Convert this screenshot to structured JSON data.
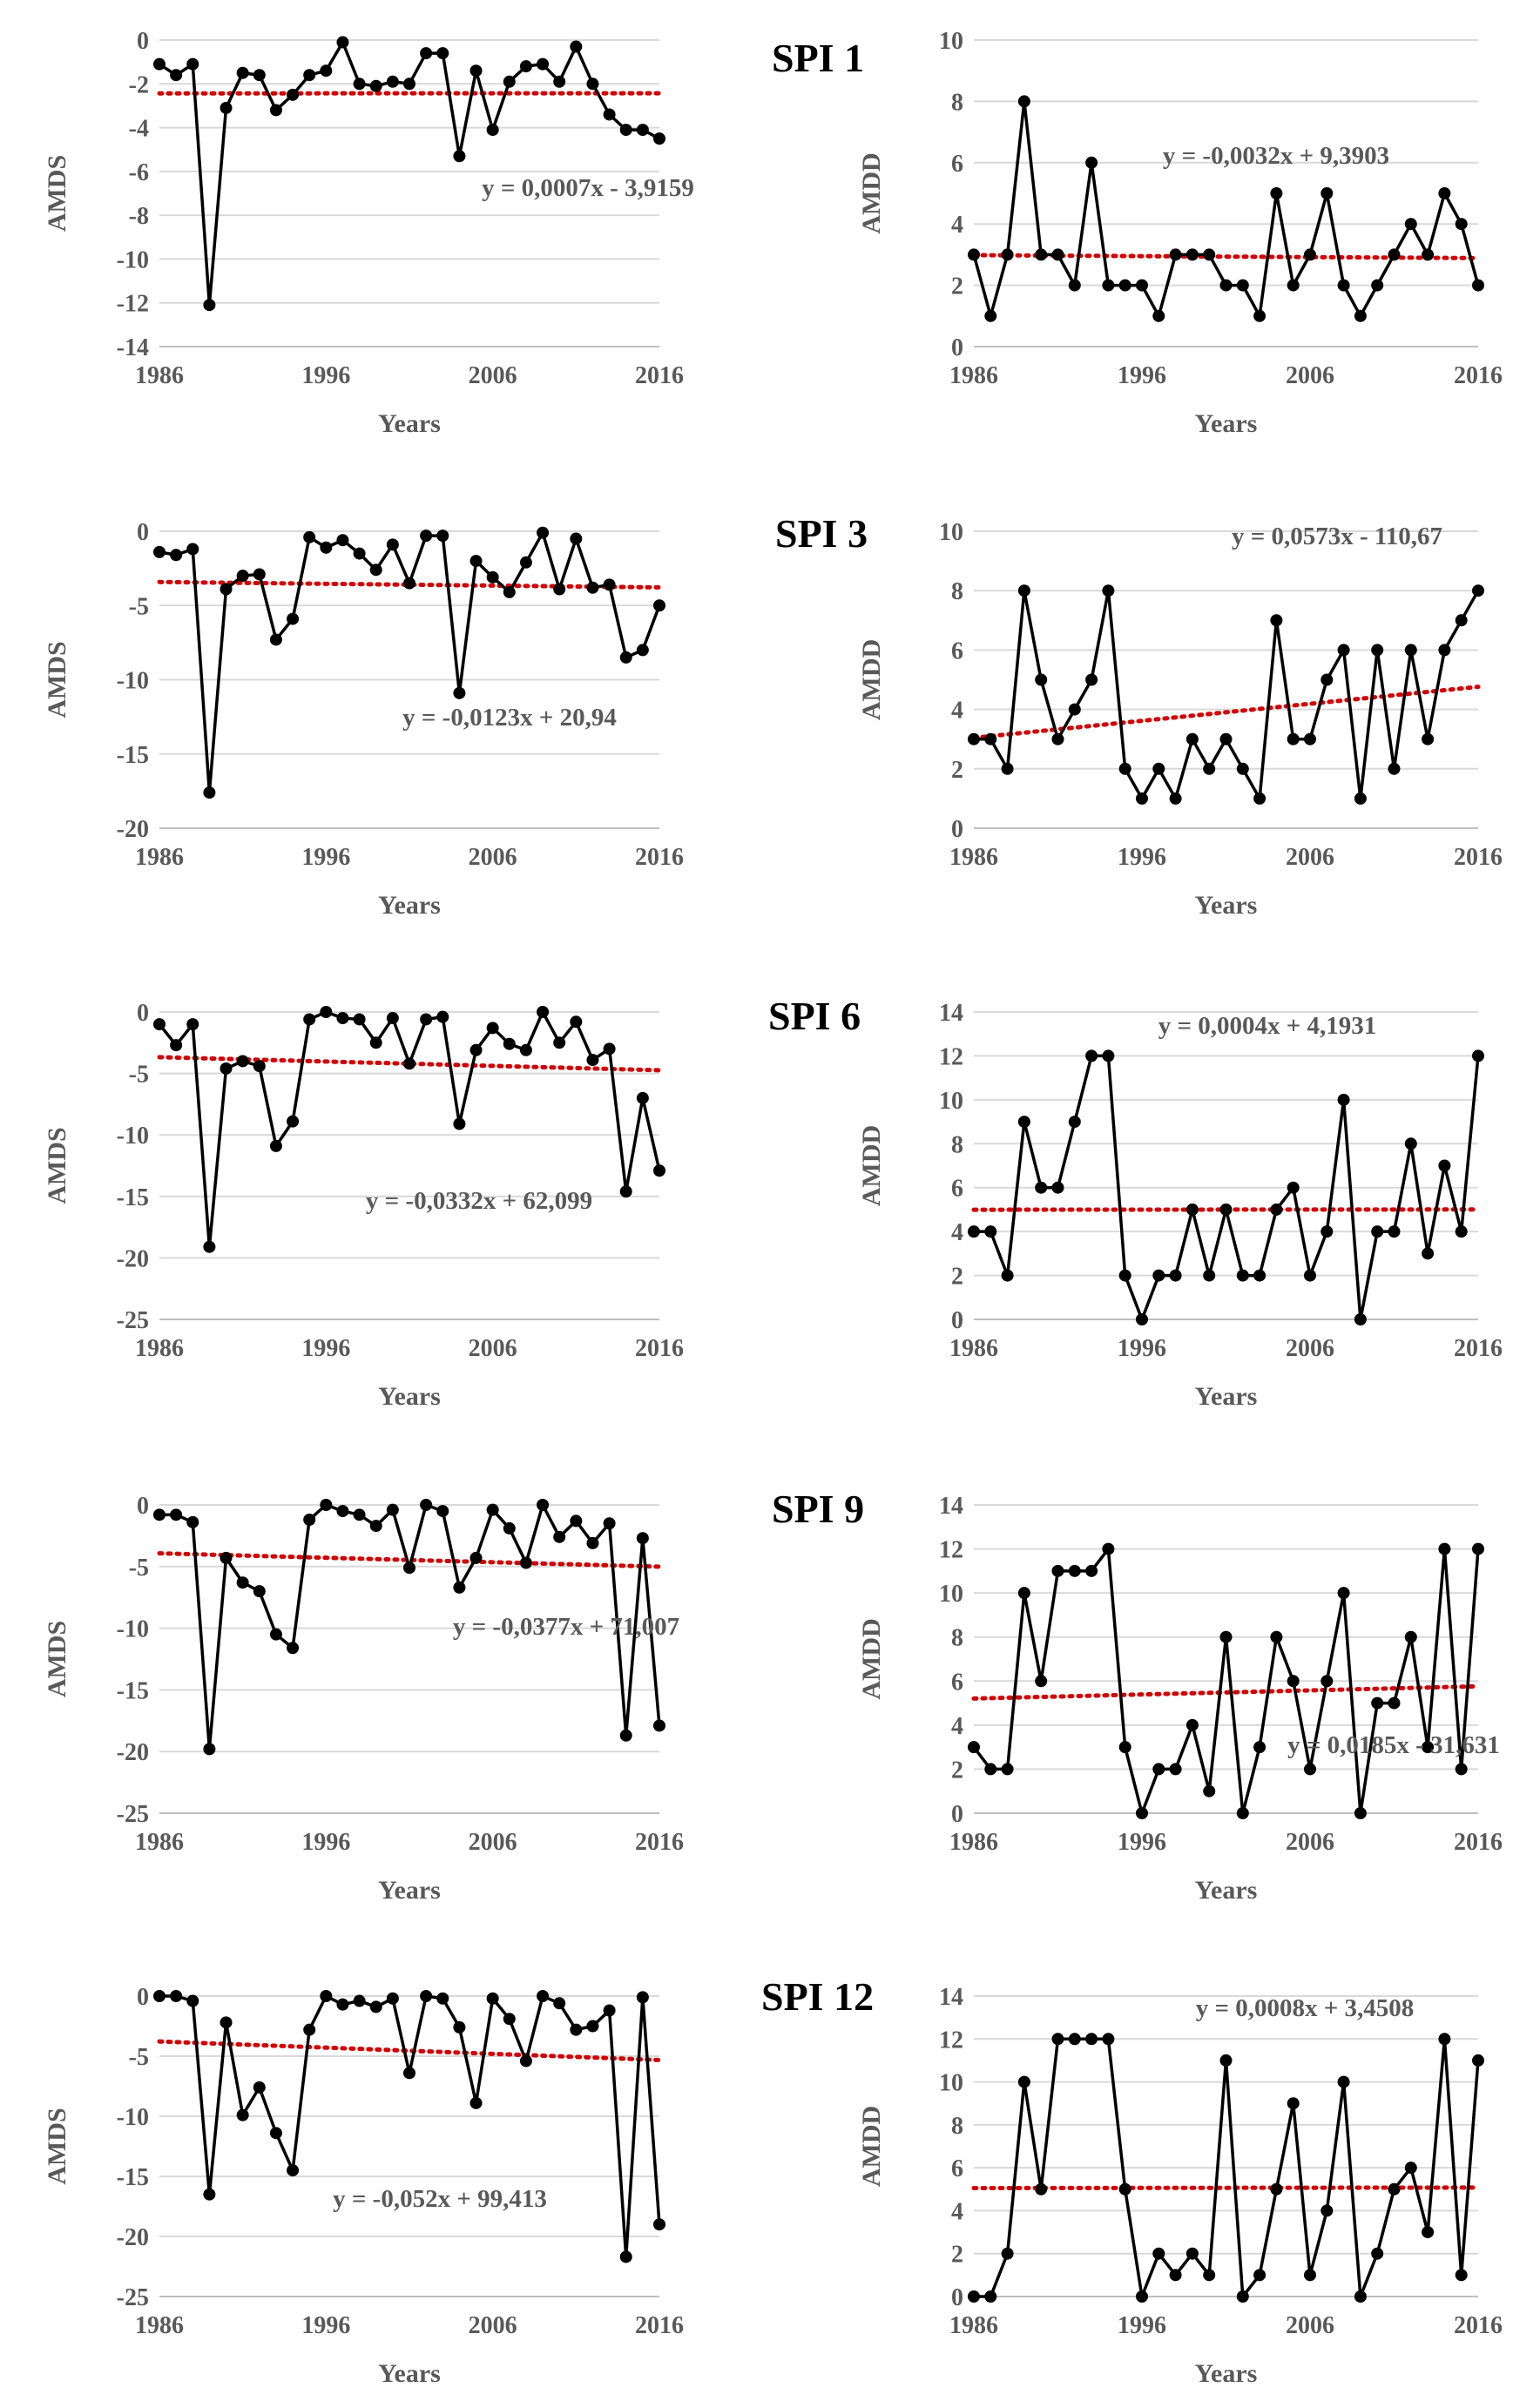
{
  "x_years": [
    1986,
    1987,
    1988,
    1989,
    1990,
    1991,
    1992,
    1993,
    1994,
    1995,
    1996,
    1997,
    1998,
    1999,
    2000,
    2001,
    2002,
    2003,
    2004,
    2005,
    2006,
    2007,
    2008,
    2009,
    2010,
    2011,
    2012,
    2013,
    2014,
    2015,
    2016
  ],
  "colors": {
    "series": "#000000",
    "trend": "#d40000",
    "axis_text": "#595959",
    "grid": "#d9d9d9"
  },
  "rows": [
    {
      "label": "SPI 1"
    },
    {
      "label": "SPI 3"
    },
    {
      "label": "SPI 6"
    },
    {
      "label": "SPI 9"
    },
    {
      "label": "SPI 12"
    }
  ],
  "chart_data": [
    {
      "id": "spi1-amds",
      "type": "line",
      "xlabel": "Years",
      "ylabel": "AMDS",
      "xticks": [
        1986,
        1996,
        2006,
        2016
      ],
      "xlim": [
        1986,
        2016
      ],
      "ylim": [
        -14,
        0
      ],
      "yticks": [
        -14,
        -12,
        -10,
        -8,
        -6,
        -4,
        -2,
        0
      ],
      "grid": true,
      "trendline": {
        "type": "linear",
        "slope": 0.0007,
        "intercept": -3.9159,
        "equation": "y = 0,0007x - 3,9159"
      },
      "values": [
        -1.1,
        -1.6,
        -1.1,
        -12.1,
        -3.1,
        -1.5,
        -1.6,
        -3.2,
        -2.5,
        -1.6,
        -1.4,
        -0.1,
        -2.0,
        -2.1,
        -1.9,
        -2.0,
        -0.6,
        -0.6,
        -5.3,
        -1.4,
        -4.1,
        -1.9,
        -1.2,
        -1.1,
        -1.9,
        -0.3,
        -2.0,
        -3.4,
        -4.1,
        -4.1,
        -4.5
      ]
    },
    {
      "id": "spi1-amdd",
      "type": "line",
      "xlabel": "Years",
      "ylabel": "AMDD",
      "xticks": [
        1986,
        1996,
        2006,
        2016
      ],
      "xlim": [
        1986,
        2016
      ],
      "ylim": [
        0,
        10
      ],
      "yticks": [
        0,
        2,
        4,
        6,
        8,
        10
      ],
      "grid": true,
      "trendline": {
        "type": "linear",
        "slope": -0.0032,
        "intercept": 9.3903,
        "equation": "y = -0,0032x + 9,3903"
      },
      "values": [
        3,
        1,
        3,
        8,
        3,
        3,
        2,
        6,
        2,
        2,
        2,
        1,
        3,
        3,
        3,
        2,
        2,
        1,
        5,
        2,
        3,
        5,
        2,
        1,
        2,
        3,
        4,
        3,
        5,
        4,
        2
      ]
    },
    {
      "id": "spi3-amds",
      "type": "line",
      "xlabel": "Years",
      "ylabel": "AMDS",
      "xticks": [
        1986,
        1996,
        2006,
        2016
      ],
      "xlim": [
        1986,
        2016
      ],
      "ylim": [
        -20,
        0
      ],
      "yticks": [
        -20,
        -15,
        -10,
        -5,
        0
      ],
      "grid": true,
      "trendline": {
        "type": "linear",
        "slope": -0.0123,
        "intercept": 20.94,
        "equation": "y = -0,0123x + 20,94"
      },
      "values": [
        -1.4,
        -1.6,
        -1.2,
        -17.6,
        -3.9,
        -3.0,
        -2.9,
        -7.3,
        -5.9,
        -0.4,
        -1.1,
        -0.6,
        -1.5,
        -2.6,
        -0.9,
        -3.5,
        -0.3,
        -0.3,
        -10.9,
        -2.0,
        -3.1,
        -4.1,
        -2.1,
        -0.1,
        -3.9,
        -0.5,
        -3.8,
        -3.6,
        -8.5,
        -8.0,
        -5.0
      ]
    },
    {
      "id": "spi3-amdd",
      "type": "line",
      "xlabel": "Years",
      "ylabel": "AMDD",
      "xticks": [
        1986,
        1996,
        2006,
        2016
      ],
      "xlim": [
        1986,
        2016
      ],
      "ylim": [
        0,
        10
      ],
      "yticks": [
        0,
        2,
        4,
        6,
        8,
        10
      ],
      "grid": true,
      "trendline": {
        "type": "linear",
        "slope": 0.0573,
        "intercept": -110.67,
        "equation": "y = 0,0573x - 110,67"
      },
      "values": [
        3,
        3,
        2,
        8,
        5,
        3,
        4,
        5,
        8,
        2,
        1,
        2,
        1,
        3,
        2,
        3,
        2,
        1,
        7,
        3,
        3,
        5,
        6,
        1,
        6,
        2,
        6,
        3,
        6,
        7,
        8
      ]
    },
    {
      "id": "spi6-amds",
      "type": "line",
      "xlabel": "Years",
      "ylabel": "AMDS",
      "xticks": [
        1986,
        1996,
        2006,
        2016
      ],
      "xlim": [
        1986,
        2016
      ],
      "ylim": [
        -25,
        0
      ],
      "yticks": [
        -25,
        -20,
        -15,
        -10,
        -5,
        0
      ],
      "grid": true,
      "trendline": {
        "type": "linear",
        "slope": -0.0332,
        "intercept": 62.099,
        "equation": "y = -0,0332x + 62,099"
      },
      "values": [
        -1.0,
        -2.7,
        -1.0,
        -19.1,
        -4.6,
        -4.0,
        -4.4,
        -10.9,
        -8.9,
        -0.6,
        0.0,
        -0.5,
        -0.6,
        -2.5,
        -0.5,
        -4.2,
        -0.6,
        -0.4,
        -9.1,
        -3.1,
        -1.3,
        -2.6,
        -3.1,
        0.0,
        -2.5,
        -0.8,
        -3.9,
        -3.0,
        -14.6,
        -7.0,
        -12.9
      ]
    },
    {
      "id": "spi6-amdd",
      "type": "line",
      "xlabel": "Years",
      "ylabel": "AMDD",
      "xticks": [
        1986,
        1996,
        2006,
        2016
      ],
      "xlim": [
        1986,
        2016
      ],
      "ylim": [
        0,
        14
      ],
      "yticks": [
        0,
        2,
        4,
        6,
        8,
        10,
        12,
        14
      ],
      "grid": true,
      "trendline": {
        "type": "linear",
        "slope": 0.0004,
        "intercept": 4.1931,
        "equation": "y = 0,0004x + 4,1931"
      },
      "values": [
        4,
        4,
        2,
        9,
        6,
        6,
        9,
        12,
        12,
        2,
        0,
        2,
        2,
        5,
        2,
        5,
        2,
        2,
        5,
        6,
        2,
        4,
        10,
        0,
        4,
        4,
        8,
        3,
        7,
        4,
        12
      ]
    },
    {
      "id": "spi9-amds",
      "type": "line",
      "xlabel": "Years",
      "ylabel": "AMDS",
      "xticks": [
        1986,
        1996,
        2006,
        2016
      ],
      "xlim": [
        1986,
        2016
      ],
      "ylim": [
        -25,
        0
      ],
      "yticks": [
        -25,
        -20,
        -15,
        -10,
        -5,
        0
      ],
      "grid": true,
      "trendline": {
        "type": "linear",
        "slope": -0.0377,
        "intercept": 71.007,
        "equation": "y = -0,0377x + 71,007"
      },
      "values": [
        -0.8,
        -0.8,
        -1.4,
        -19.8,
        -4.3,
        -6.3,
        -7.0,
        -10.5,
        -11.6,
        -1.2,
        0.0,
        -0.5,
        -0.8,
        -1.7,
        -0.4,
        -5.1,
        0.0,
        -0.5,
        -6.7,
        -4.3,
        -0.4,
        -1.9,
        -4.7,
        0.0,
        -2.6,
        -1.3,
        -3.1,
        -1.5,
        -18.7,
        -2.7,
        -17.9
      ]
    },
    {
      "id": "spi9-amdd",
      "type": "line",
      "xlabel": "Years",
      "ylabel": "AMDD",
      "xticks": [
        1986,
        1996,
        2006,
        2016
      ],
      "xlim": [
        1986,
        2016
      ],
      "ylim": [
        0,
        14
      ],
      "yticks": [
        0,
        2,
        4,
        6,
        8,
        10,
        12,
        14
      ],
      "grid": true,
      "trendline": {
        "type": "linear",
        "slope": 0.0185,
        "intercept": -31.631,
        "equation": "y = 0,0185x - 31,631"
      },
      "values": [
        3,
        2,
        2,
        10,
        6,
        11,
        11,
        11,
        12,
        3,
        0,
        2,
        2,
        4,
        1,
        8,
        0,
        3,
        8,
        6,
        2,
        6,
        10,
        0,
        5,
        5,
        8,
        3,
        12,
        2,
        12
      ]
    },
    {
      "id": "spi12-amds",
      "type": "line",
      "xlabel": "Years",
      "ylabel": "AMDS",
      "xticks": [
        1986,
        1996,
        2006,
        2016
      ],
      "xlim": [
        1986,
        2016
      ],
      "ylim": [
        -25,
        0
      ],
      "yticks": [
        -25,
        -20,
        -15,
        -10,
        -5,
        0
      ],
      "grid": true,
      "trendline": {
        "type": "linear",
        "slope": -0.052,
        "intercept": 99.413,
        "equation": "y = -0,052x + 99,413"
      },
      "values": [
        0.0,
        0.0,
        -0.4,
        -16.5,
        -2.2,
        -9.9,
        -7.6,
        -11.4,
        -14.5,
        -2.8,
        0.0,
        -0.7,
        -0.4,
        -0.9,
        -0.2,
        -6.4,
        0.0,
        -0.2,
        -2.6,
        -8.9,
        -0.2,
        -1.9,
        -5.4,
        0.0,
        -0.6,
        -2.8,
        -2.5,
        -1.2,
        -21.7,
        -0.1,
        -19.0
      ]
    },
    {
      "id": "spi12-amdd",
      "type": "line",
      "xlabel": "Years",
      "ylabel": "AMDD",
      "xticks": [
        1986,
        1996,
        2006,
        2016
      ],
      "xlim": [
        1986,
        2016
      ],
      "ylim": [
        0,
        14
      ],
      "yticks": [
        0,
        2,
        4,
        6,
        8,
        10,
        12,
        14
      ],
      "grid": true,
      "trendline": {
        "type": "linear",
        "slope": 0.0008,
        "intercept": 3.4508,
        "equation": "y = 0,0008x + 3,4508"
      },
      "values": [
        0,
        0,
        2,
        10,
        5,
        12,
        12,
        12,
        12,
        5,
        0,
        2,
        1,
        2,
        1,
        11,
        0,
        1,
        5,
        9,
        1,
        4,
        10,
        0,
        2,
        5,
        6,
        3,
        12,
        1,
        11
      ]
    }
  ]
}
